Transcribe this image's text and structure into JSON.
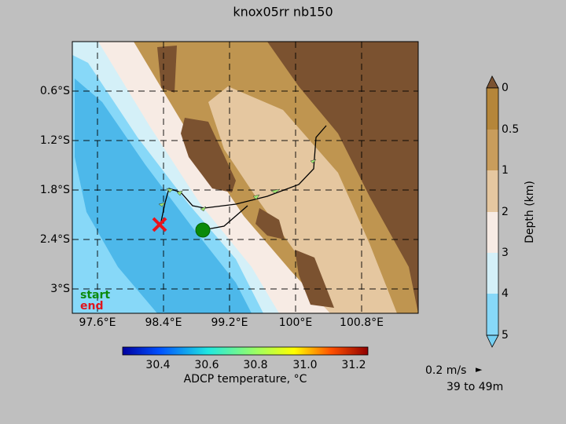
{
  "title": "knox05rr nb150",
  "map": {
    "lat_labels": [
      "0.6°S",
      "1.2°S",
      "1.8°S",
      "2.4°S",
      "3°S"
    ],
    "lon_labels": [
      "97.6°E",
      "98.4°E",
      "99.2°E",
      "100°E",
      "100.8°E"
    ],
    "start_label": "start",
    "end_label": "end"
  },
  "depth_colorbar": {
    "label": "Depth (km)",
    "ticks": [
      "0",
      "0.5",
      "1",
      "2",
      "3",
      "4",
      "5"
    ]
  },
  "temperature_colorbar": {
    "label": "ADCP temperature, °C",
    "ticks": [
      "30.4",
      "30.6",
      "30.8",
      "31.0",
      "31.2"
    ]
  },
  "vector_key": {
    "speed": "0.2 m/s",
    "arrow": "►",
    "depth_range": "39 to 49m"
  }
}
